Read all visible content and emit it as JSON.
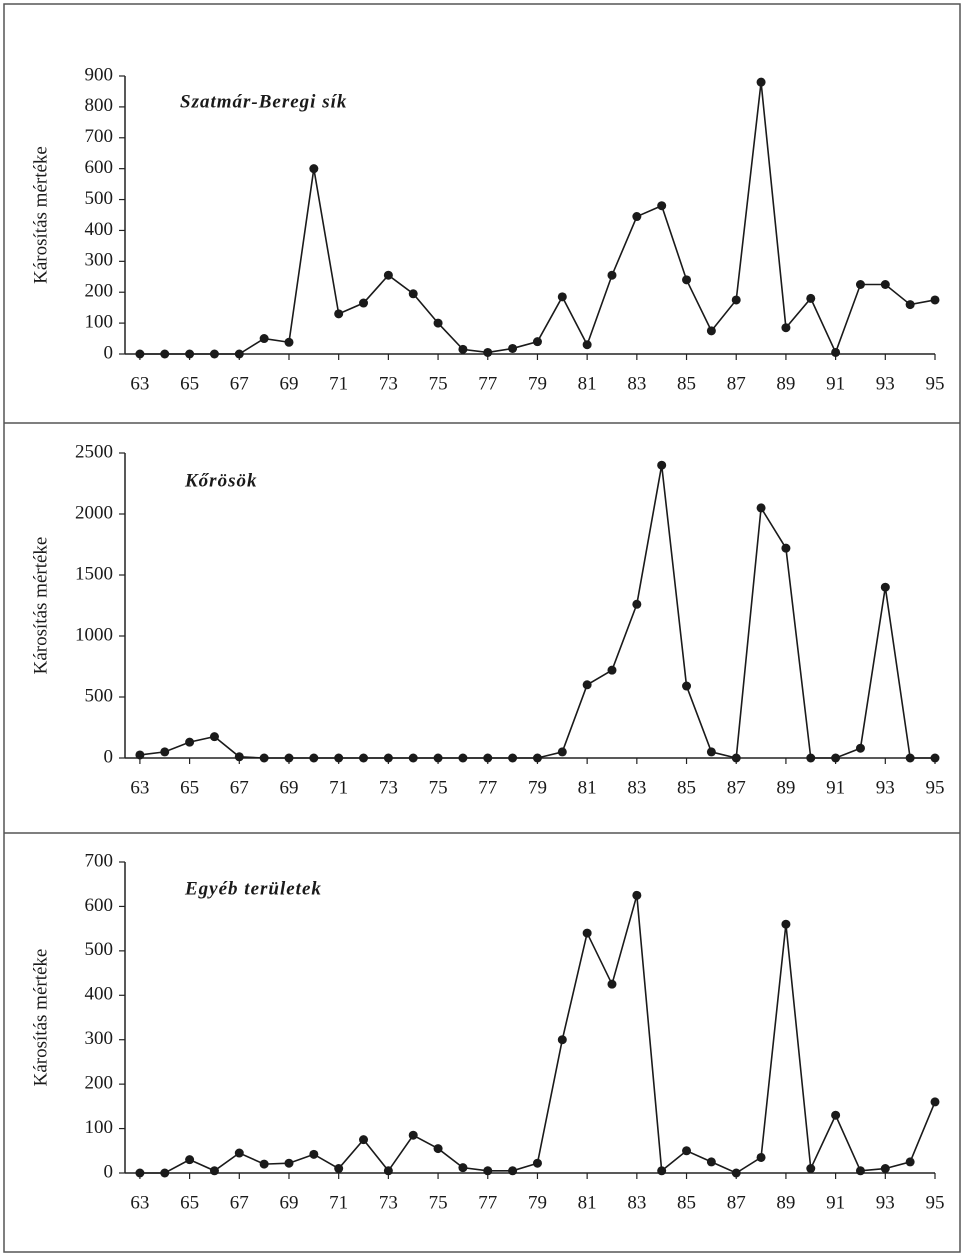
{
  "chart_data": [
    {
      "type": "line",
      "title": "Szatmár-Beregi sík",
      "y_label": "Károsítás mértéke",
      "color": "#1a1a1a",
      "x": [
        63,
        64,
        65,
        66,
        67,
        68,
        69,
        70,
        71,
        72,
        73,
        74,
        75,
        76,
        77,
        78,
        79,
        80,
        81,
        82,
        83,
        84,
        85,
        86,
        87,
        88,
        89,
        90,
        91,
        92,
        93,
        94,
        95
      ],
      "values": [
        0,
        0,
        0,
        0,
        0,
        50,
        38,
        600,
        130,
        165,
        255,
        195,
        100,
        15,
        5,
        18,
        40,
        185,
        30,
        255,
        445,
        480,
        240,
        75,
        175,
        880,
        85,
        180,
        5,
        225,
        225,
        160,
        175
      ],
      "xlim": [
        62.4,
        95
      ],
      "xticks": [
        63,
        65,
        67,
        69,
        71,
        73,
        75,
        77,
        79,
        81,
        83,
        85,
        87,
        89,
        91,
        93,
        95
      ],
      "ylim": [
        0,
        900
      ],
      "yticks": [
        0,
        100,
        200,
        300,
        400,
        500,
        600,
        700,
        800,
        900
      ]
    },
    {
      "type": "line",
      "title": "Kőrösök",
      "y_label": "Károsítás mértéke",
      "color": "#1a1a1a",
      "x": [
        63,
        64,
        65,
        66,
        67,
        68,
        69,
        70,
        71,
        72,
        73,
        74,
        75,
        76,
        77,
        78,
        79,
        80,
        81,
        82,
        83,
        84,
        85,
        86,
        87,
        88,
        89,
        90,
        91,
        92,
        93,
        94,
        95
      ],
      "values": [
        25,
        50,
        130,
        175,
        10,
        0,
        0,
        0,
        0,
        0,
        0,
        0,
        0,
        0,
        0,
        0,
        0,
        50,
        600,
        720,
        1260,
        2400,
        590,
        50,
        0,
        2050,
        1720,
        0,
        0,
        80,
        1400,
        0,
        0
      ],
      "xlim": [
        62.4,
        95
      ],
      "xticks": [
        63,
        65,
        67,
        69,
        71,
        73,
        75,
        77,
        79,
        81,
        83,
        85,
        87,
        89,
        91,
        93,
        95
      ],
      "ylim": [
        0,
        2500
      ],
      "yticks": [
        0,
        500,
        1000,
        1500,
        2000,
        2500
      ]
    },
    {
      "type": "line",
      "title": "Egyéb területek",
      "y_label": "Károsítás mértéke",
      "color": "#1a1a1a",
      "x": [
        63,
        64,
        65,
        66,
        67,
        68,
        69,
        70,
        71,
        72,
        73,
        74,
        75,
        76,
        77,
        78,
        79,
        80,
        81,
        82,
        83,
        84,
        85,
        86,
        87,
        88,
        89,
        90,
        91,
        92,
        93,
        94,
        95
      ],
      "values": [
        0,
        0,
        30,
        5,
        45,
        20,
        22,
        42,
        10,
        75,
        5,
        85,
        55,
        12,
        5,
        5,
        22,
        300,
        540,
        425,
        625,
        5,
        50,
        25,
        0,
        35,
        560,
        10,
        130,
        5,
        10,
        25,
        160
      ],
      "xlim": [
        62.4,
        95
      ],
      "xticks": [
        63,
        65,
        67,
        69,
        71,
        73,
        75,
        77,
        79,
        81,
        83,
        85,
        87,
        89,
        91,
        93,
        95
      ],
      "ylim": [
        0,
        700
      ],
      "yticks": [
        0,
        100,
        200,
        300,
        400,
        500,
        600,
        700
      ]
    }
  ]
}
